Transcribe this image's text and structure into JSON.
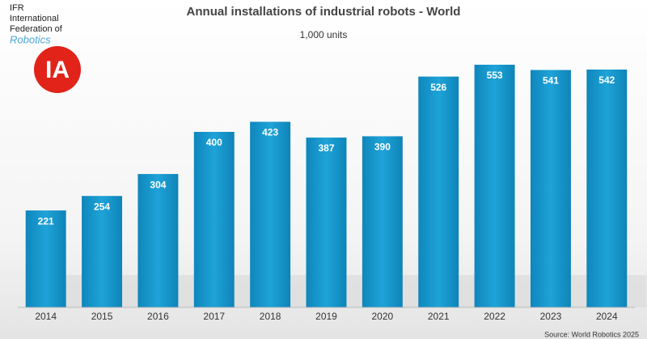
{
  "logo": {
    "lines": [
      "IFR",
      "International",
      "Federation of",
      "Robotics"
    ],
    "badge": "IA"
  },
  "chart_data": {
    "type": "bar",
    "title": "Annual installations of industrial robots - World",
    "subtitle": "1,000 units",
    "source": "Source: World Robotics 2025",
    "categories": [
      "2014",
      "2015",
      "2016",
      "2017",
      "2018",
      "2019",
      "2020",
      "2021",
      "2022",
      "2023",
      "2024"
    ],
    "values": [
      221,
      254,
      304,
      400,
      423,
      387,
      390,
      526,
      553,
      541,
      542
    ],
    "color": "#1a9bd0"
  }
}
